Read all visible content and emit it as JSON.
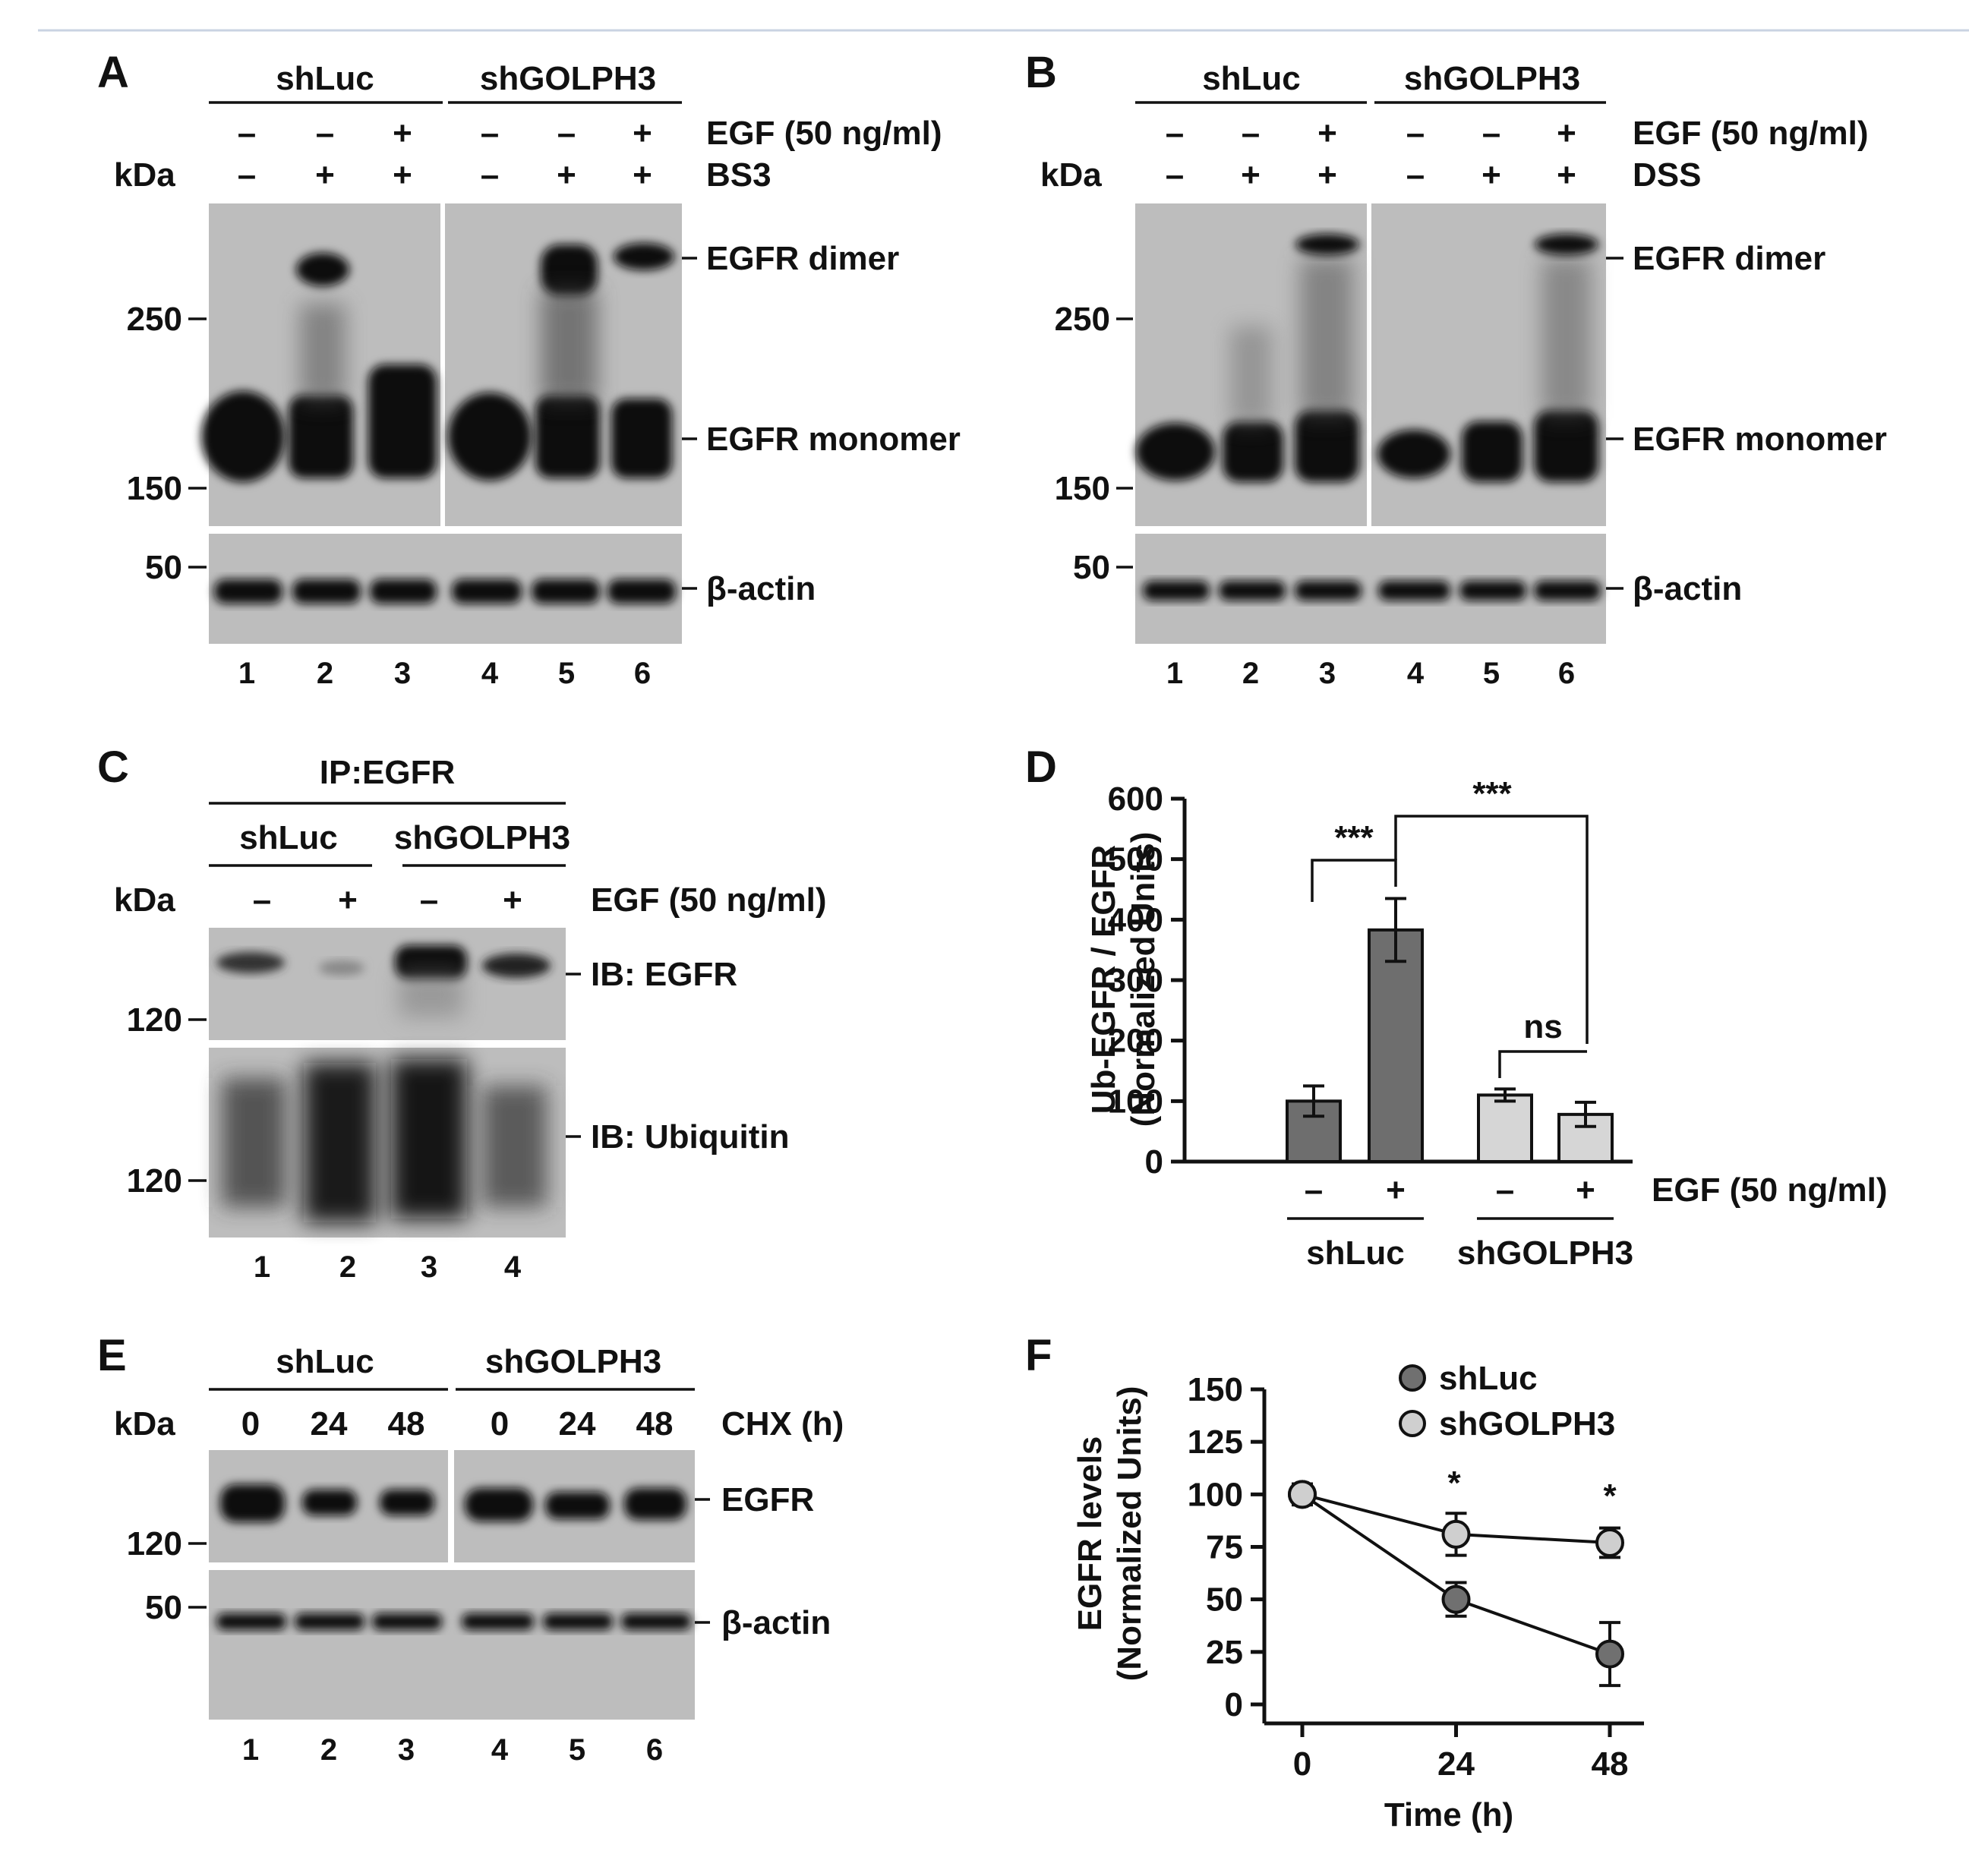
{
  "panels": {
    "A": {
      "letter": "A",
      "groups": [
        "shLuc",
        "shGOLPH3"
      ],
      "row1_label": "EGF (50 ng/ml)",
      "row1_signs": [
        "–",
        "–",
        "+",
        "–",
        "–",
        "+"
      ],
      "row2_label": "BS3",
      "row2_signs": [
        "–",
        "+",
        "+",
        "–",
        "+",
        "+"
      ],
      "kda": "kDa",
      "markers": [
        "250",
        "150",
        "50"
      ],
      "band_labels": [
        "EGFR dimer",
        "EGFR monomer",
        "β-actin"
      ],
      "lanes": [
        "1",
        "2",
        "3",
        "4",
        "5",
        "6"
      ]
    },
    "B": {
      "letter": "B",
      "groups": [
        "shLuc",
        "shGOLPH3"
      ],
      "row1_label": "EGF (50 ng/ml)",
      "row1_signs": [
        "–",
        "–",
        "+",
        "–",
        "–",
        "+"
      ],
      "row2_label": "DSS",
      "row2_signs": [
        "–",
        "+",
        "+",
        "–",
        "+",
        "+"
      ],
      "kda": "kDa",
      "markers": [
        "250",
        "150",
        "50"
      ],
      "band_labels": [
        "EGFR dimer",
        "EGFR monomer",
        "β-actin"
      ],
      "lanes": [
        "1",
        "2",
        "3",
        "4",
        "5",
        "6"
      ]
    },
    "C": {
      "letter": "C",
      "ip": "IP:EGFR",
      "groups": [
        "shLuc",
        "shGOLPH3"
      ],
      "row_label": "EGF (50 ng/ml)",
      "row_signs": [
        "–",
        "+",
        "–",
        "+"
      ],
      "kda": "kDa",
      "markers": [
        "120",
        "120"
      ],
      "band_labels": [
        "IB: EGFR",
        "IB: Ubiquitin"
      ],
      "lanes": [
        "1",
        "2",
        "3",
        "4"
      ]
    },
    "D": {
      "letter": "D",
      "ylabel_line1": "Ub-EGFR / EGFR",
      "ylabel_line2": "(Normalized Units)",
      "xrow_label": "EGF (50 ng/ml)",
      "xrow_signs": [
        "–",
        "+",
        "–",
        "+"
      ],
      "groups": [
        "shLuc",
        "shGOLPH3"
      ],
      "sig": [
        "***",
        "***",
        "ns"
      ],
      "bar_colors": [
        "#6e6e6e",
        "#d6d6d6"
      ]
    },
    "E": {
      "letter": "E",
      "groups": [
        "shLuc",
        "shGOLPH3"
      ],
      "kda": "kDa",
      "times": [
        "0",
        "24",
        "48",
        "0",
        "24",
        "48"
      ],
      "row_label": "CHX (h)",
      "markers": [
        "120",
        "50"
      ],
      "band_labels": [
        "EGFR",
        "β-actin"
      ],
      "lanes": [
        "1",
        "2",
        "3",
        "4",
        "5",
        "6"
      ]
    },
    "F": {
      "letter": "F",
      "ylabel_line1": "EGFR levels",
      "ylabel_line2": "(Normalized Units)",
      "xlabel": "Time (h)",
      "sig": [
        "*",
        "*"
      ],
      "series_colors": [
        "#707070",
        "#cfcfcf"
      ]
    }
  },
  "chart_data": [
    {
      "type": "bar",
      "panel": "D",
      "categories": [
        "–",
        "+",
        "–",
        "+"
      ],
      "series": [
        {
          "name": "shLuc",
          "values": [
            100,
            383,
            null,
            null
          ],
          "errors": [
            25,
            52,
            null,
            null
          ]
        },
        {
          "name": "shGOLPH3",
          "values": [
            null,
            null,
            110,
            78
          ],
          "errors": [
            null,
            null,
            10,
            20
          ]
        }
      ],
      "ylim": [
        0,
        600
      ],
      "yticks": [
        0,
        100,
        200,
        300,
        400,
        500,
        600
      ],
      "ylabel": "Ub-EGFR / EGFR (Normalized Units)",
      "xlabel": "EGF (50 ng/ml)"
    },
    {
      "type": "line",
      "panel": "F",
      "x": [
        0,
        24,
        48
      ],
      "series": [
        {
          "name": "shLuc",
          "values": [
            100,
            50,
            24
          ],
          "errors": [
            5,
            8,
            15
          ]
        },
        {
          "name": "shGOLPH3",
          "values": [
            100,
            81,
            77
          ],
          "errors": [
            5,
            10,
            7
          ]
        }
      ],
      "xlim": [
        0,
        48
      ],
      "ylim": [
        0,
        150
      ],
      "xticks": [
        0,
        24,
        48
      ],
      "yticks": [
        0,
        25,
        50,
        75,
        100,
        125,
        150
      ],
      "xlabel": "Time (h)",
      "ylabel": "EGFR levels (Normalized Units)",
      "legend": "top"
    }
  ]
}
